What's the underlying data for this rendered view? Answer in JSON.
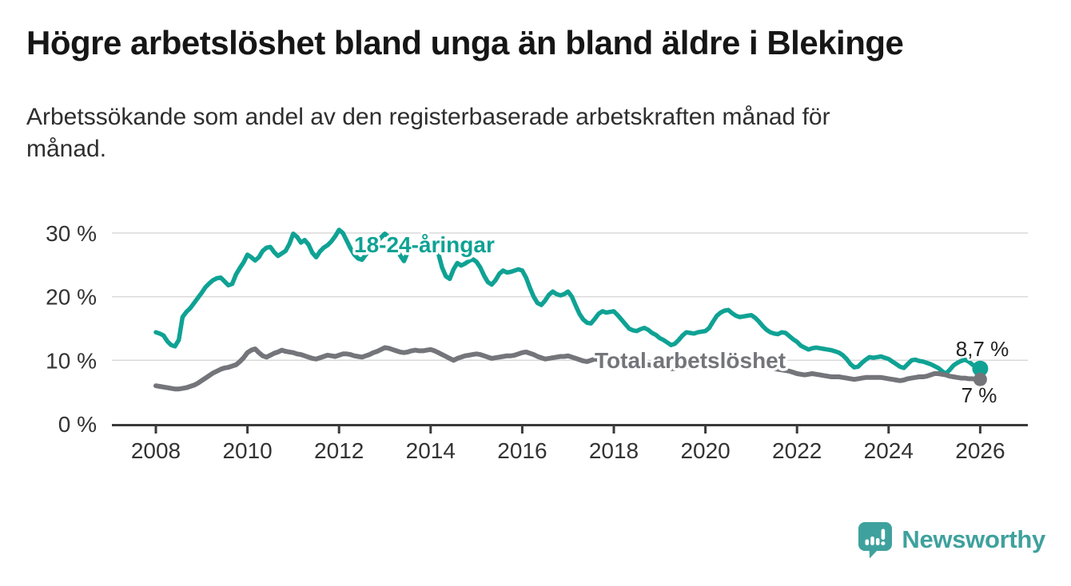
{
  "footer": {
    "brand": "Newsworthy"
  },
  "chart_data": {
    "type": "line",
    "title": "Högre arbetslöshet bland unga än bland äldre i Blekinge",
    "subtitle": "Arbetssökande som andel av den registerbaserade arbetskraften månad för månad.",
    "y_unit": "percent",
    "x_unit": "year, monthly resolution",
    "xlim": [
      2007.04,
      2027.04
    ],
    "ylim": [
      0,
      32.75
    ],
    "grid": "horizontal",
    "legend_position": "inline-labels",
    "x_ticks": [
      {
        "value": 2008,
        "label": "2008"
      },
      {
        "value": 2010,
        "label": "2010"
      },
      {
        "value": 2012,
        "label": "2012"
      },
      {
        "value": 2014,
        "label": "2014"
      },
      {
        "value": 2016,
        "label": "2016"
      },
      {
        "value": 2018,
        "label": "2018"
      },
      {
        "value": 2020,
        "label": "2020"
      },
      {
        "value": 2022,
        "label": "2022"
      },
      {
        "value": 2024,
        "label": "2024"
      },
      {
        "value": 2026,
        "label": "2026"
      }
    ],
    "y_ticks": [
      {
        "value": 0,
        "label": "0 %"
      },
      {
        "value": 10,
        "label": "10 %"
      },
      {
        "value": 20,
        "label": "20 %"
      },
      {
        "value": 30,
        "label": "30 %"
      }
    ],
    "series": [
      {
        "id": "young",
        "name": "18-24-åringar",
        "color": "#0fa294",
        "end_label": "8,7 %",
        "last_value": 8.7,
        "x_start": 2008,
        "x_step_months": 1,
        "values": [
          14.4,
          14.2,
          13.9,
          13.0,
          12.4,
          12.2,
          13.2,
          16.8,
          17.6,
          18.2,
          19.0,
          19.8,
          20.6,
          21.5,
          22.1,
          22.6,
          22.9,
          23.0,
          22.4,
          21.8,
          22.0,
          23.5,
          24.5,
          25.4,
          26.6,
          26.2,
          25.7,
          26.2,
          27.2,
          27.7,
          27.8,
          27.0,
          26.4,
          26.8,
          27.2,
          28.3,
          29.9,
          29.4,
          28.5,
          28.9,
          28.2,
          26.9,
          26.2,
          27.1,
          27.7,
          28.1,
          28.7,
          29.5,
          30.5,
          30.0,
          28.8,
          27.6,
          26.6,
          26.0,
          25.8,
          26.6,
          27.4,
          28.0,
          28.6,
          29.3,
          29.9,
          29.4,
          28.6,
          27.7,
          26.5,
          25.6,
          27.0,
          28.2,
          28.1,
          27.7,
          27.9,
          28.3,
          28.6,
          28.0,
          26.8,
          24.6,
          23.2,
          22.8,
          24.3,
          25.3,
          24.9,
          25.2,
          25.6,
          25.9,
          25.5,
          24.6,
          23.3,
          22.3,
          21.9,
          22.6,
          23.6,
          24.1,
          23.8,
          23.9,
          24.1,
          24.3,
          24.1,
          23.0,
          21.4,
          20.0,
          19.0,
          18.7,
          19.4,
          20.3,
          20.8,
          20.4,
          20.2,
          20.4,
          20.8,
          20.0,
          18.6,
          17.3,
          16.4,
          15.9,
          15.8,
          16.5,
          17.3,
          17.7,
          17.5,
          17.6,
          17.7,
          17.1,
          16.4,
          15.7,
          15.0,
          14.7,
          14.6,
          14.9,
          15.1,
          14.8,
          14.3,
          14.0,
          13.5,
          13.2,
          12.8,
          12.4,
          12.6,
          13.2,
          13.9,
          14.4,
          14.3,
          14.2,
          14.4,
          14.5,
          14.6,
          15.1,
          16.1,
          17.0,
          17.5,
          17.8,
          17.9,
          17.4,
          17.0,
          16.8,
          16.9,
          17.0,
          17.1,
          16.7,
          16.1,
          15.4,
          14.8,
          14.4,
          14.2,
          14.1,
          14.4,
          14.3,
          13.8,
          13.3,
          12.9,
          12.3,
          12.0,
          11.7,
          11.9,
          12.0,
          11.9,
          11.8,
          11.7,
          11.6,
          11.4,
          11.2,
          10.8,
          10.2,
          9.4,
          8.9,
          9.0,
          9.6,
          10.1,
          10.5,
          10.4,
          10.5,
          10.6,
          10.4,
          10.2,
          9.8,
          9.4,
          9.0,
          8.8,
          9.4,
          10.0,
          10.1,
          9.9,
          9.8,
          9.6,
          9.4,
          9.1,
          8.8,
          8.3,
          7.9,
          8.5,
          9.2,
          9.6,
          9.9,
          10.1,
          9.8,
          9.3,
          9.0,
          8.7
        ]
      },
      {
        "id": "total",
        "name": "Total arbetslöshet",
        "color": "#74757a",
        "end_label": "7 %",
        "last_value": 7.0,
        "x_start": 2008,
        "x_step_months": 1,
        "values": [
          6.0,
          5.9,
          5.8,
          5.7,
          5.6,
          5.5,
          5.5,
          5.6,
          5.7,
          5.9,
          6.1,
          6.4,
          6.8,
          7.2,
          7.6,
          8.0,
          8.3,
          8.6,
          8.8,
          8.9,
          9.1,
          9.3,
          9.8,
          10.4,
          11.2,
          11.6,
          11.8,
          11.2,
          10.7,
          10.5,
          10.8,
          11.1,
          11.3,
          11.6,
          11.4,
          11.3,
          11.2,
          11.0,
          10.9,
          10.7,
          10.5,
          10.3,
          10.2,
          10.4,
          10.6,
          10.8,
          10.7,
          10.6,
          10.8,
          11.0,
          11.0,
          10.9,
          10.7,
          10.6,
          10.5,
          10.7,
          10.9,
          11.2,
          11.4,
          11.7,
          12.0,
          11.9,
          11.7,
          11.5,
          11.3,
          11.2,
          11.3,
          11.5,
          11.6,
          11.5,
          11.5,
          11.6,
          11.7,
          11.5,
          11.2,
          10.9,
          10.6,
          10.3,
          10.0,
          10.3,
          10.5,
          10.7,
          10.8,
          10.9,
          11.0,
          10.9,
          10.7,
          10.5,
          10.3,
          10.4,
          10.5,
          10.6,
          10.7,
          10.7,
          10.8,
          11.0,
          11.2,
          11.3,
          11.1,
          10.9,
          10.6,
          10.4,
          10.2,
          10.3,
          10.4,
          10.5,
          10.6,
          10.6,
          10.7,
          10.5,
          10.3,
          10.1,
          9.9,
          9.8,
          10.0,
          10.2,
          10.1,
          10.0,
          9.9,
          9.9,
          9.9,
          9.8,
          9.6,
          9.5,
          9.4,
          9.3,
          9.3,
          9.4,
          9.4,
          9.3,
          9.2,
          9.1,
          9.0,
          8.9,
          8.8,
          8.7,
          8.7,
          8.8,
          8.9,
          9.0,
          9.0,
          9.0,
          9.1,
          9.1,
          9.2,
          9.3,
          9.5,
          9.7,
          9.8,
          9.9,
          9.9,
          9.8,
          9.7,
          9.6,
          9.6,
          9.5,
          9.5,
          9.4,
          9.2,
          9.1,
          8.9,
          8.8,
          8.7,
          8.6,
          8.5,
          8.4,
          8.3,
          8.1,
          7.9,
          7.8,
          7.7,
          7.8,
          7.9,
          7.8,
          7.7,
          7.6,
          7.5,
          7.4,
          7.4,
          7.4,
          7.3,
          7.2,
          7.1,
          7.0,
          7.1,
          7.2,
          7.3,
          7.3,
          7.3,
          7.3,
          7.3,
          7.2,
          7.1,
          7.0,
          6.9,
          6.8,
          6.9,
          7.1,
          7.2,
          7.3,
          7.4,
          7.4,
          7.5,
          7.7,
          7.9,
          7.9,
          7.8,
          7.7,
          7.5,
          7.4,
          7.3,
          7.2,
          7.2,
          7.1,
          7.1,
          7.0,
          7.0
        ]
      }
    ],
    "style": {
      "grid_color": "#d9d9d9",
      "axis_color": "#3a3a3a",
      "tick_text_color": "#333333",
      "brand_color": "#3fa19d"
    }
  }
}
